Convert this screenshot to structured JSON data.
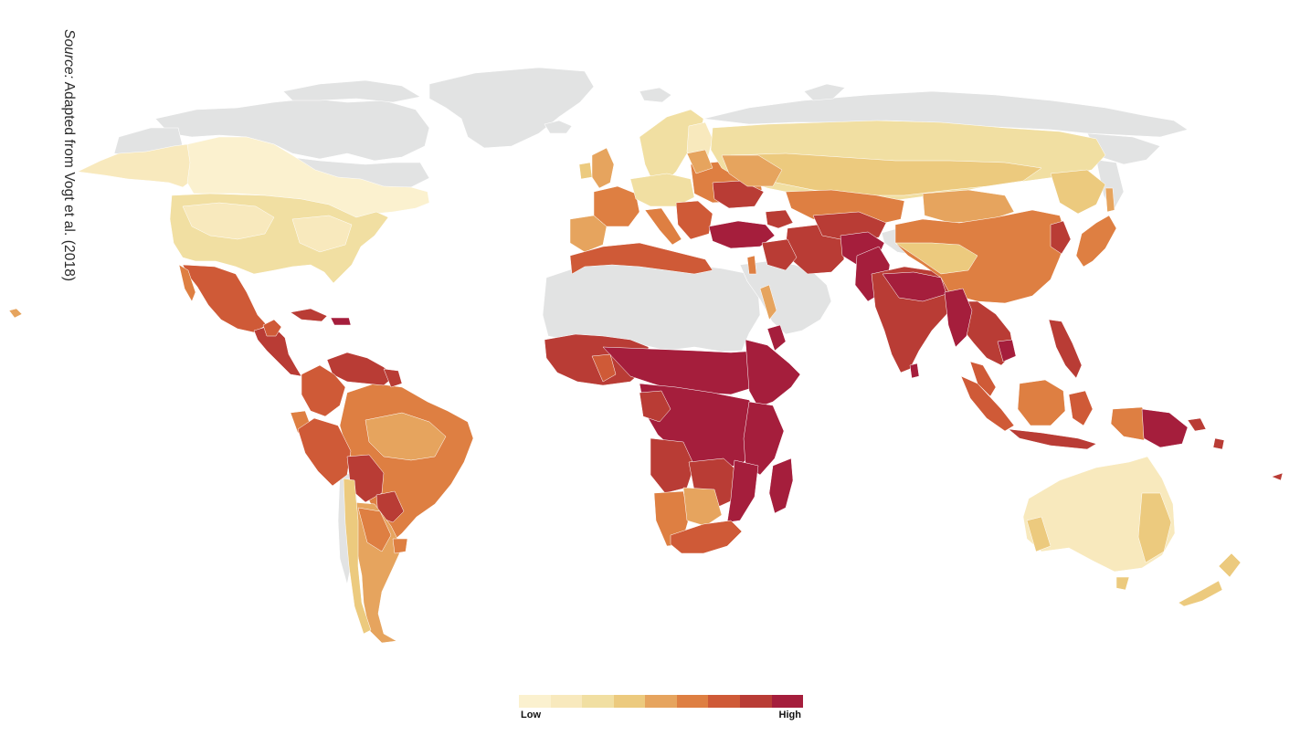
{
  "source_note": {
    "prefix": "Source:",
    "text": " Adapted from Vogt et al. (2018)"
  },
  "legend": {
    "low_label": "Low",
    "high_label": "High",
    "colors": [
      "#fbf1cf",
      "#f8e9bd",
      "#f1dfa2",
      "#ecca7e",
      "#e6a45e",
      "#de7f42",
      "#cf5a37",
      "#b93c35",
      "#a51e3c"
    ]
  },
  "map": {
    "no_data_color": "#e2e3e3",
    "border_color": "#ffffff"
  }
}
